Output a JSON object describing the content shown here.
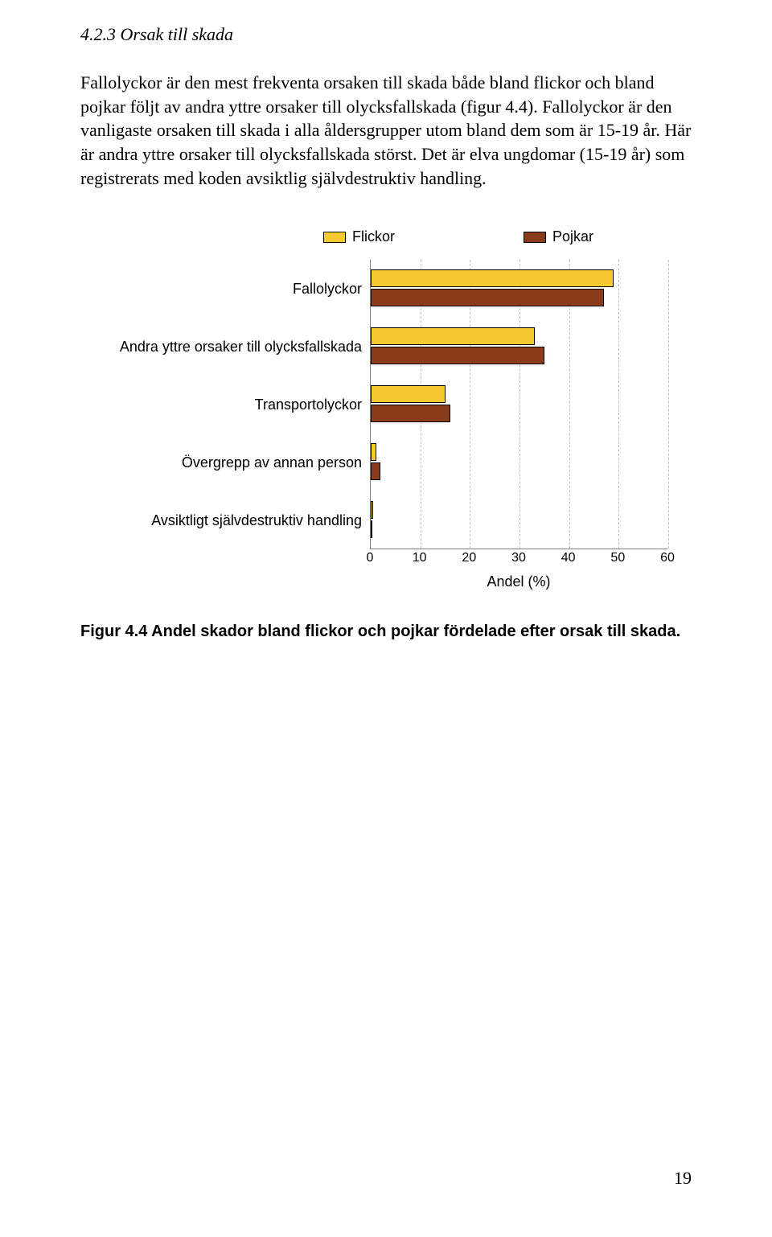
{
  "heading": "4.2.3 Orsak till skada",
  "paragraph": "Fallolyckor är den mest frekventa orsaken till skada både bland flickor och bland pojkar följt av andra yttre orsaker till olycksfallskada (figur 4.4). Fallolyckor är den vanligaste orsaken till skada i alla åldersgrupper utom bland dem som är 15-19 år. Här är andra yttre orsaker till olycksfallskada störst. Det är elva ungdomar (15-19 år) som registrerats med koden avsiktlig självdestruktiv handling.",
  "chart": {
    "type": "bar-horizontal-grouped",
    "legend": [
      {
        "label": "Flickor",
        "color": "#f3c92f"
      },
      {
        "label": "Pojkar",
        "color": "#8a3b1a"
      }
    ],
    "categories": [
      "Fallolyckor",
      "Andra yttre orsaker till olycksfallskada",
      "Transportolyckor",
      "Övergrepp av annan person",
      "Avsiktligt självdestruktiv handling"
    ],
    "series": {
      "flickor": [
        49,
        33,
        15,
        1.2,
        0.5
      ],
      "pojkar": [
        47,
        35,
        16,
        2.0,
        0.3
      ]
    },
    "colors": {
      "flickor": "#f3c92f",
      "pojkar": "#8a3b1a"
    },
    "x": {
      "min": 0,
      "max": 60,
      "step": 10,
      "title": "Andel (%)"
    },
    "grid_color": "#bfbfbf",
    "axis_color": "#7f7f7f",
    "font_family": "Arial"
  },
  "caption": "Figur 4.4 Andel skador bland flickor och pojkar fördelade efter orsak till skada.",
  "page_number": "19"
}
